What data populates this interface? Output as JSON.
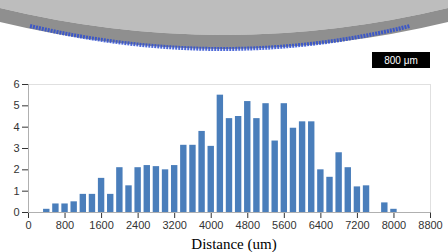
{
  "chart_data": {
    "type": "bar",
    "xlabel": "Distance (um)",
    "annotations": [
      "800 μm"
    ],
    "x": [
      400,
      600,
      800,
      1000,
      1200,
      1400,
      1600,
      1800,
      2000,
      2200,
      2400,
      2600,
      2800,
      3000,
      3200,
      3400,
      3600,
      3800,
      4000,
      4200,
      4400,
      4600,
      4800,
      5000,
      5200,
      5400,
      5600,
      5800,
      6000,
      6200,
      6400,
      6600,
      6800,
      7000,
      7200,
      7400,
      7600,
      7800,
      8000
    ],
    "values": [
      0.15,
      0.4,
      0.4,
      0.5,
      0.85,
      0.85,
      1.6,
      0.85,
      2.1,
      1.25,
      2.1,
      2.2,
      2.15,
      2.0,
      2.2,
      3.15,
      3.15,
      3.8,
      3.1,
      5.5,
      4.4,
      4.5,
      5.2,
      4.4,
      5.1,
      3.35,
      5.1,
      3.95,
      4.25,
      4.25,
      2.0,
      1.65,
      2.8,
      2.1,
      1.2,
      1.25,
      0,
      0.45,
      0.15
    ],
    "color": "#4a7ebb",
    "xlim": [
      0,
      8800
    ],
    "xticks": [
      0,
      800,
      1600,
      2400,
      3200,
      4000,
      4800,
      5600,
      6400,
      7200,
      8000,
      8800
    ],
    "ylim": [
      0,
      6
    ],
    "yticks": [
      0,
      1,
      2,
      3,
      4,
      5,
      6
    ],
    "grid": false
  }
}
